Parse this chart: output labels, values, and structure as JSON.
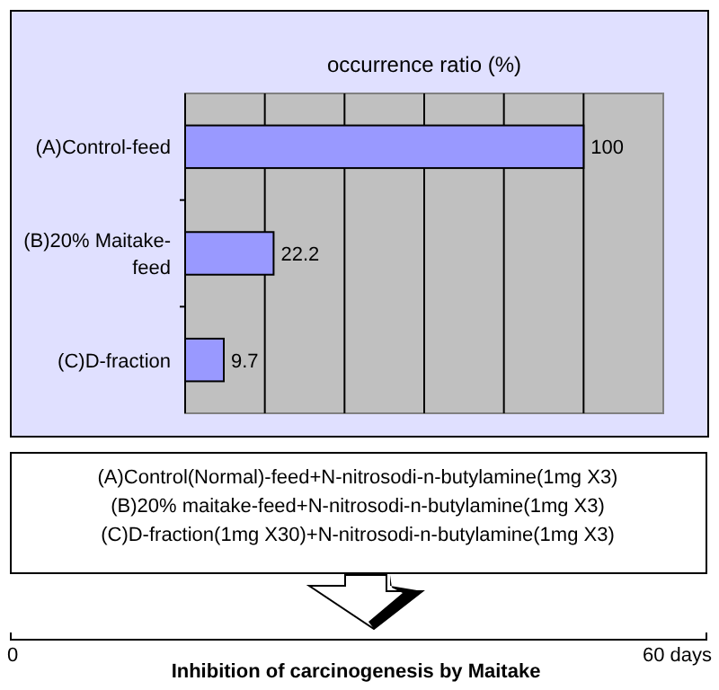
{
  "chart_data": {
    "type": "bar",
    "orientation": "horizontal",
    "title": "occurrence ratio (%)",
    "categories": [
      "(A)Control-feed",
      "(B)20% Maitake-feed",
      "(C)D-fraction"
    ],
    "values": [
      100,
      22.2,
      9.7
    ],
    "color": "#9999ff",
    "xlim": [
      0,
      120
    ],
    "xticks": [
      {
        "value": 20,
        "label": null
      },
      {
        "value": 40,
        "label": null
      },
      {
        "value": 60,
        "label": null
      },
      {
        "value": 80,
        "label": null
      },
      {
        "value": 100,
        "label": null
      }
    ],
    "tick_labels": "y",
    "grid": "x",
    "data_labels": true,
    "annotations": [
      "(A)Control(Normal)-feed+N-nitrosodi-n-butylamine(1mg X3)",
      "(B)20% maitake-feed+N-nitrosodi-n-butylamine(1mg X3)",
      "(C)D-fraction(1mg X30)+N-nitrosodi-n-butylamine(1mg X3)",
      "0",
      "60 days",
      "Inhibition of carcinogenesis by Maitake"
    ]
  }
}
